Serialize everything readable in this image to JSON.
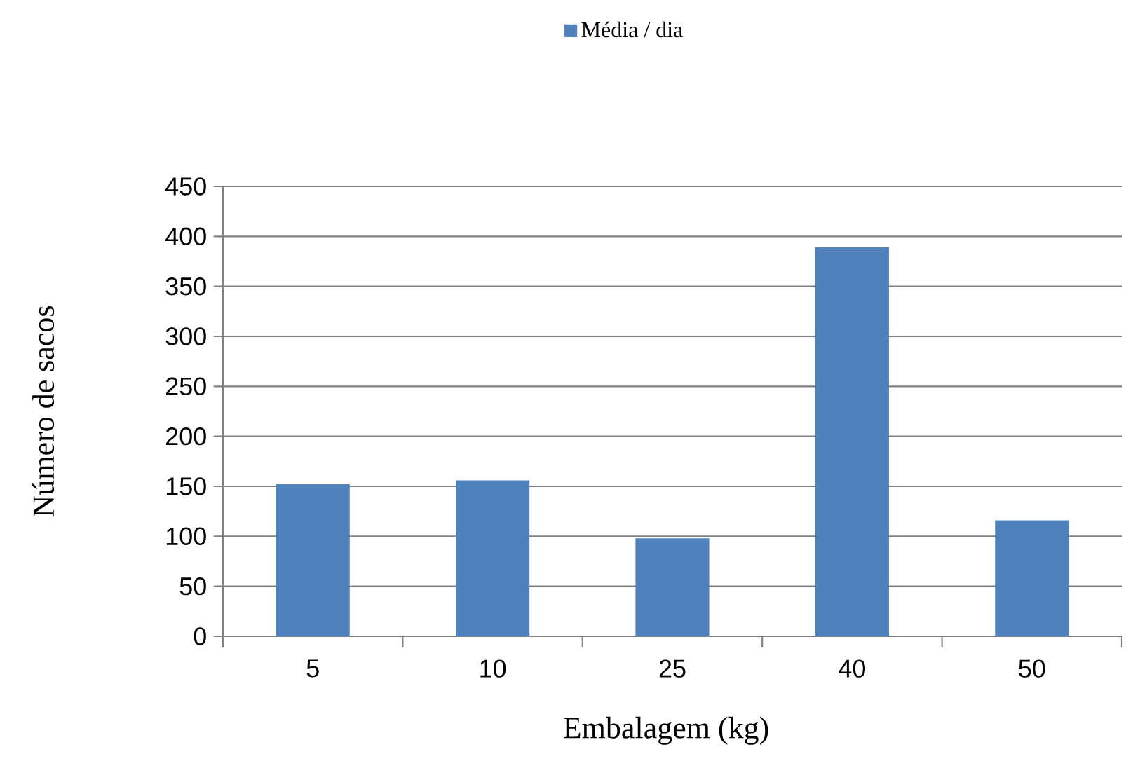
{
  "chart_data": {
    "type": "bar",
    "xlabel": "Embalagem (kg)",
    "ylabel": "Número de sacos",
    "categories": [
      "5",
      "10",
      "25",
      "40",
      "50"
    ],
    "series": [
      {
        "name": "Média / dia",
        "color": "#4f81bd",
        "values": [
          152,
          156,
          98,
          389,
          116
        ]
      }
    ],
    "ylim": [
      0,
      450
    ],
    "yticks": [
      0,
      50,
      100,
      150,
      200,
      250,
      300,
      350,
      400,
      450
    ],
    "grid": "y",
    "legend": "top"
  }
}
